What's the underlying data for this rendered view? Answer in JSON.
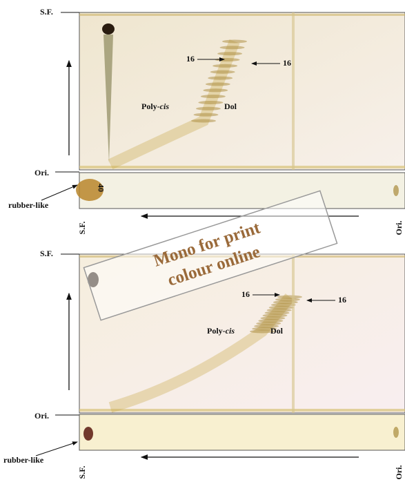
{
  "panels": [
    {
      "front_label": "S.F.",
      "origin_label": "Ori.",
      "band_label_left": "16",
      "band_label_right": "16",
      "poly_label": [
        "Poly-",
        "cis"
      ],
      "dol_label": "Dol",
      "spot_label": "rubber-like",
      "strip_front_label": "S.F.",
      "strip_origin_label": "Ori.",
      "strip_mark": "40"
    },
    {
      "front_label": "S.F.",
      "origin_label": "Ori.",
      "band_label_left": "16",
      "band_label_right": "16",
      "poly_label": [
        "Poly-",
        "cis"
      ],
      "dol_label": "Dol",
      "spot_label": "rubber-like",
      "strip_front_label": "S.F.",
      "strip_origin_label": "Ori."
    }
  ],
  "watermark": [
    "Mono for print",
    "colour online"
  ]
}
